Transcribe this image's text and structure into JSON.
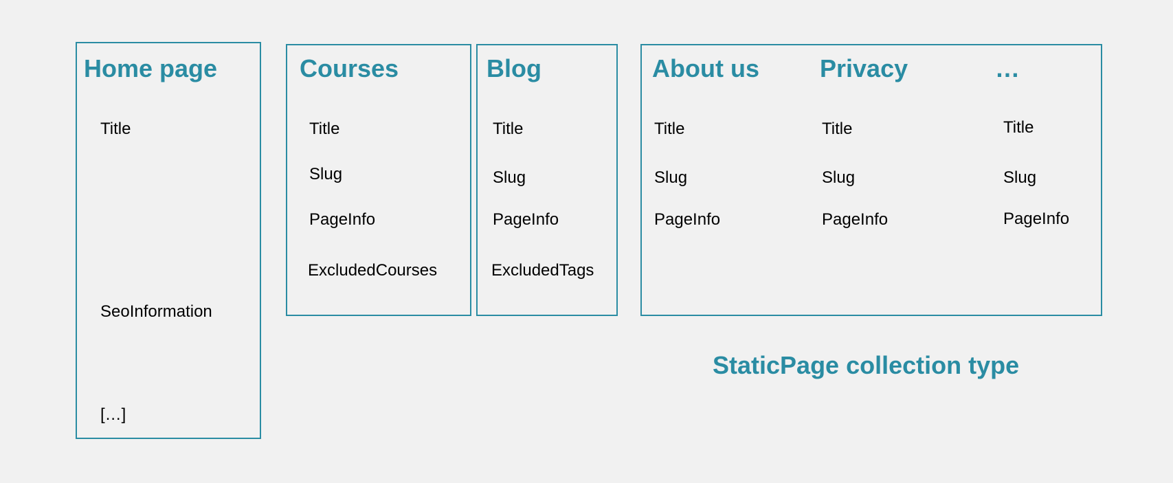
{
  "home": {
    "title": "Home page",
    "fields": [
      "Title",
      "SeoInformation",
      "[…]"
    ]
  },
  "courses": {
    "title": "Courses",
    "fields": [
      "Title",
      "Slug",
      "PageInfo",
      "ExcludedCourses"
    ]
  },
  "blog": {
    "title": "Blog",
    "fields": [
      "Title",
      "Slug",
      "PageInfo",
      "ExcludedTags"
    ]
  },
  "static_pages": {
    "caption": "StaticPage collection type",
    "columns": [
      {
        "title": "About us",
        "fields": [
          "Title",
          "Slug",
          "PageInfo"
        ]
      },
      {
        "title": "Privacy",
        "fields": [
          "Title",
          "Slug",
          "PageInfo"
        ]
      },
      {
        "title": "…",
        "fields": [
          "Title",
          "Slug",
          "PageInfo"
        ]
      }
    ]
  },
  "colors": {
    "accent": "#2a8ca3",
    "background": "#f1f1f1",
    "text": "#000000"
  }
}
